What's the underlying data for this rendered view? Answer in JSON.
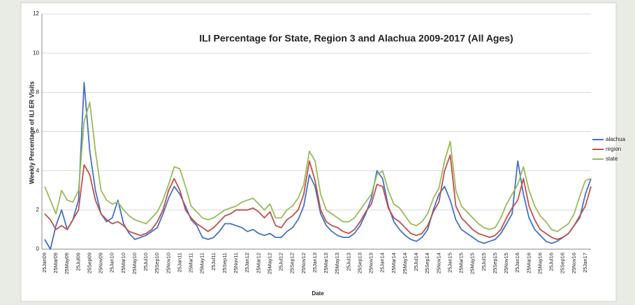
{
  "chart_data": {
    "type": "line",
    "title": "ILI Percentage for State, Region 3 and Alachua 2009-2017 (All Ages)",
    "x_label": "Date",
    "y_label": "Weekly Percentage of ILI ER Visits",
    "categories": [
      "25Jan09",
      null,
      "25Mar09",
      null,
      "25May09",
      null,
      "25Jul09",
      null,
      "25Sep09",
      null,
      "25Nov09",
      null,
      "25Jan10",
      null,
      "25Mar10",
      null,
      "25May10",
      null,
      "25Jul10",
      null,
      "25Sep10",
      null,
      "25Nov10",
      null,
      "25Jan11",
      null,
      "25Mar11",
      null,
      "25May11",
      null,
      "25Jul11",
      null,
      "25Sep11",
      null,
      "25Nov11",
      null,
      "25Jan12",
      null,
      "25Mar12",
      null,
      "25May12",
      null,
      "25Jul12",
      null,
      "25Sep12",
      null,
      "25Nov12",
      null,
      "25Jan13",
      null,
      "25Mar13",
      null,
      "25May13",
      null,
      "25Jul13",
      null,
      "25Sep13",
      null,
      "25Nov13",
      null,
      "25Jan14",
      null,
      "25Mar14",
      null,
      "25May14",
      null,
      "25Jul14",
      null,
      "25Sep14",
      null,
      "25Nov14",
      null,
      "25Jan15",
      null,
      "25Mar15",
      null,
      "25May15",
      null,
      "25Jul15",
      null,
      "25Sep15",
      null,
      "25Nov15",
      null,
      "25Jan16",
      null,
      "25Mar16",
      null,
      "25May16",
      null,
      "25Jul16",
      null,
      "25Sep16",
      null,
      "25Nov16",
      null,
      "25Jan17",
      null
    ],
    "series": [
      {
        "name": "alachua",
        "color": "#4472c4",
        "values": [
          0.5,
          0.0,
          1.2,
          2.0,
          1.0,
          1.5,
          2.5,
          8.5,
          5.0,
          3.0,
          1.8,
          1.4,
          1.6,
          2.5,
          1.3,
          0.8,
          0.5,
          0.6,
          0.7,
          0.9,
          1.1,
          1.8,
          2.6,
          3.2,
          2.8,
          2.2,
          1.5,
          1.2,
          0.6,
          0.5,
          0.6,
          0.9,
          1.3,
          1.3,
          1.2,
          1.1,
          0.9,
          1.0,
          0.8,
          0.7,
          0.8,
          0.6,
          0.6,
          0.9,
          1.1,
          1.5,
          2.2,
          3.8,
          3.2,
          1.8,
          1.2,
          0.9,
          0.7,
          0.6,
          0.6,
          0.8,
          1.2,
          1.8,
          2.6,
          4.0,
          3.6,
          2.2,
          1.4,
          1.0,
          0.7,
          0.5,
          0.4,
          0.6,
          1.0,
          2.0,
          2.8,
          3.2,
          2.5,
          1.5,
          1.0,
          0.8,
          0.6,
          0.4,
          0.3,
          0.4,
          0.5,
          0.8,
          1.3,
          1.8,
          4.5,
          2.8,
          1.6,
          1.0,
          0.7,
          0.4,
          0.3,
          0.4,
          0.6,
          0.8,
          1.2,
          1.6,
          2.8,
          3.6
        ]
      },
      {
        "name": "region",
        "color": "#c0504d",
        "values": [
          1.8,
          1.5,
          1.0,
          1.2,
          1.0,
          1.5,
          2.0,
          4.3,
          3.8,
          2.5,
          1.8,
          1.5,
          1.3,
          1.4,
          1.2,
          0.9,
          0.8,
          0.7,
          0.8,
          1.0,
          1.4,
          2.0,
          3.0,
          3.6,
          3.0,
          2.0,
          1.6,
          1.3,
          1.1,
          0.9,
          1.1,
          1.4,
          1.7,
          1.8,
          2.0,
          2.0,
          2.0,
          2.1,
          1.9,
          1.6,
          1.9,
          1.2,
          1.1,
          1.5,
          1.7,
          2.0,
          2.8,
          4.5,
          3.5,
          2.0,
          1.4,
          1.2,
          1.1,
          0.9,
          0.8,
          1.0,
          1.4,
          1.9,
          2.3,
          3.3,
          3.2,
          2.1,
          1.6,
          1.4,
          1.1,
          0.8,
          0.7,
          0.8,
          1.2,
          1.9,
          2.4,
          4.0,
          4.8,
          2.2,
          1.6,
          1.3,
          1.0,
          0.8,
          0.7,
          0.6,
          0.7,
          1.0,
          1.6,
          2.1,
          2.5,
          3.6,
          2.2,
          1.5,
          1.0,
          0.8,
          0.6,
          0.5,
          0.6,
          0.8,
          1.2,
          1.7,
          2.2,
          3.2
        ]
      },
      {
        "name": "state",
        "color": "#9bbb59",
        "values": [
          3.2,
          2.5,
          1.8,
          3.0,
          2.5,
          2.4,
          3.0,
          6.5,
          7.5,
          5.0,
          3.0,
          2.5,
          2.3,
          2.4,
          2.0,
          1.7,
          1.5,
          1.4,
          1.3,
          1.6,
          1.9,
          2.5,
          3.3,
          4.2,
          4.1,
          3.2,
          2.2,
          1.9,
          1.6,
          1.5,
          1.6,
          1.8,
          2.0,
          2.1,
          2.2,
          2.4,
          2.5,
          2.6,
          2.3,
          2.0,
          2.3,
          1.6,
          1.6,
          2.0,
          2.2,
          2.6,
          3.3,
          5.0,
          4.5,
          2.8,
          2.0,
          1.8,
          1.6,
          1.4,
          1.4,
          1.6,
          2.0,
          2.4,
          2.8,
          3.8,
          4.0,
          3.0,
          2.3,
          2.1,
          1.7,
          1.3,
          1.2,
          1.4,
          1.8,
          2.6,
          3.1,
          4.5,
          5.5,
          3.0,
          2.2,
          1.9,
          1.6,
          1.3,
          1.1,
          1.0,
          1.1,
          1.6,
          2.3,
          2.8,
          3.3,
          4.2,
          3.0,
          2.2,
          1.7,
          1.4,
          1.0,
          0.9,
          1.1,
          1.3,
          1.8,
          2.7,
          3.5,
          3.6
        ]
      }
    ],
    "ylim": [
      0,
      12
    ],
    "yticks": [
      0,
      2,
      4,
      6,
      8,
      10,
      12
    ],
    "grid": true,
    "legend": "right"
  }
}
